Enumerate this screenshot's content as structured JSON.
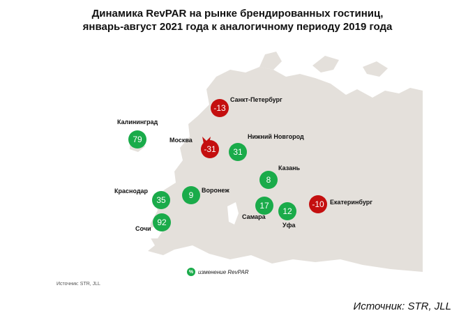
{
  "title": {
    "line1": "Динамика RevPAR на рынке брендированных гостиниц,",
    "line2": "январь-август 2021 года к аналогичному периоду 2019 года"
  },
  "colors": {
    "positive": "#1aab4a",
    "negative": "#c40f0f",
    "land": "#e4e0db"
  },
  "cities": [
    {
      "id": "saint-petersburg",
      "name": "Санкт-Петербург",
      "value": "-13",
      "sign": "negative"
    },
    {
      "id": "kaliningrad",
      "name": "Калининград",
      "value": "79",
      "sign": "positive"
    },
    {
      "id": "moscow",
      "name": "Москва",
      "value": "-31",
      "sign": "negative"
    },
    {
      "id": "nizhny-novgorod",
      "name": "Нижний Новгород",
      "value": "31",
      "sign": "positive"
    },
    {
      "id": "kazan",
      "name": "Казань",
      "value": "8",
      "sign": "positive"
    },
    {
      "id": "voronezh",
      "name": "Воронеж",
      "value": "9",
      "sign": "positive"
    },
    {
      "id": "krasnodar",
      "name": "Краснодар",
      "value": "35",
      "sign": "positive"
    },
    {
      "id": "sochi",
      "name": "Сочи",
      "value": "92",
      "sign": "positive"
    },
    {
      "id": "samara",
      "name": "Самара",
      "value": "17",
      "sign": "positive"
    },
    {
      "id": "ufa",
      "name": "Уфа",
      "value": "12",
      "sign": "positive"
    },
    {
      "id": "yekaterinburg",
      "name": "Екатеринбург",
      "value": "-10",
      "sign": "negative"
    }
  ],
  "legend": {
    "symbol": "%",
    "text": "изменение RevPAR"
  },
  "source_small": "Источник: STR, JLL",
  "source_large": "Источник: STR, JLL"
}
